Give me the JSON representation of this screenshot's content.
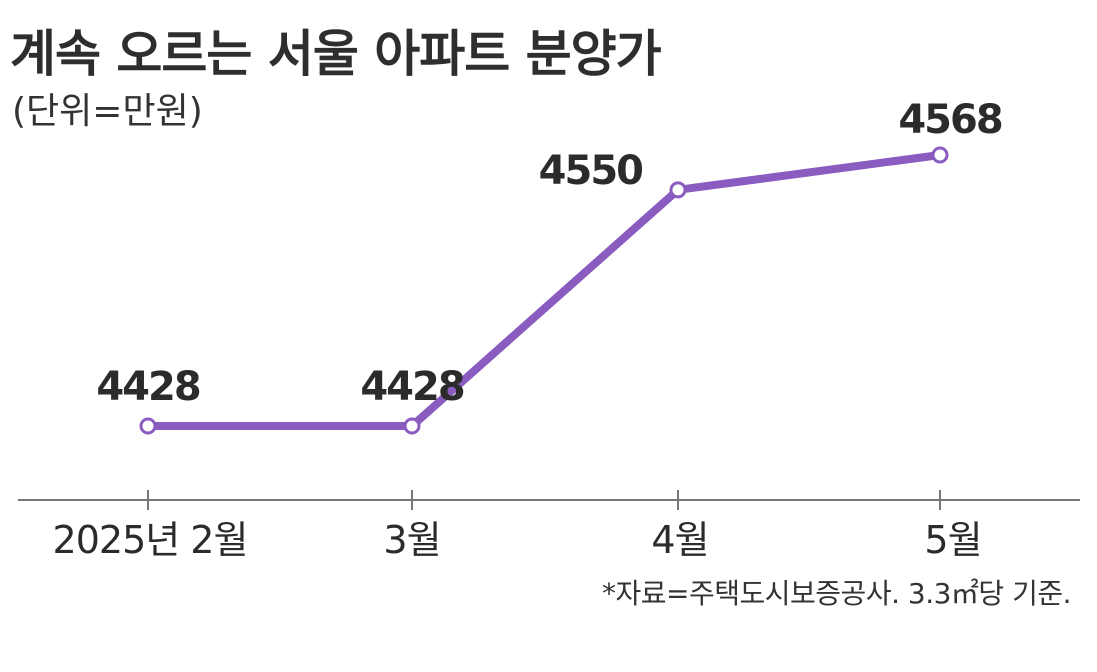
{
  "chart_data": {
    "type": "line",
    "title": "계속 오르는 서울 아파트 분양가",
    "unit_label": "(단위=만원)",
    "source_note": "*자료=주택도시보증공사. 3.3㎡당 기준.",
    "categories": [
      "2025년 2월",
      "3월",
      "4월",
      "5월"
    ],
    "series": [
      {
        "values": [
          4428,
          4428,
          4550,
          4568
        ],
        "color": "#8a5cc0"
      }
    ],
    "data_labels": [
      "4428",
      "4428",
      "4550",
      "4568"
    ],
    "grid": false,
    "axis_color": "#777777"
  }
}
